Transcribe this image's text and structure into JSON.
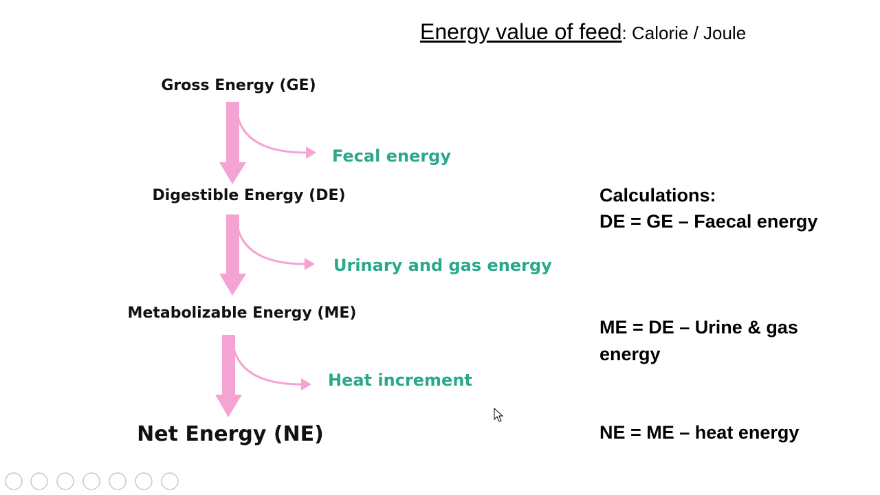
{
  "title": {
    "main": "Energy value of feed",
    "rest": ": Calorie / Joule"
  },
  "flow": {
    "stages": [
      "Gross Energy (GE)",
      "Digestible Energy (DE)",
      "Metabolizable Energy (ME)",
      "Net Energy (NE)"
    ],
    "losses": [
      "Fecal energy",
      "Urinary and gas energy",
      "Heat increment"
    ]
  },
  "calculations": {
    "heading": "Calculations:",
    "lines": [
      "DE = GE – Faecal energy",
      "ME = DE – Urine & gas energy",
      "NE = ME – heat energy"
    ]
  }
}
